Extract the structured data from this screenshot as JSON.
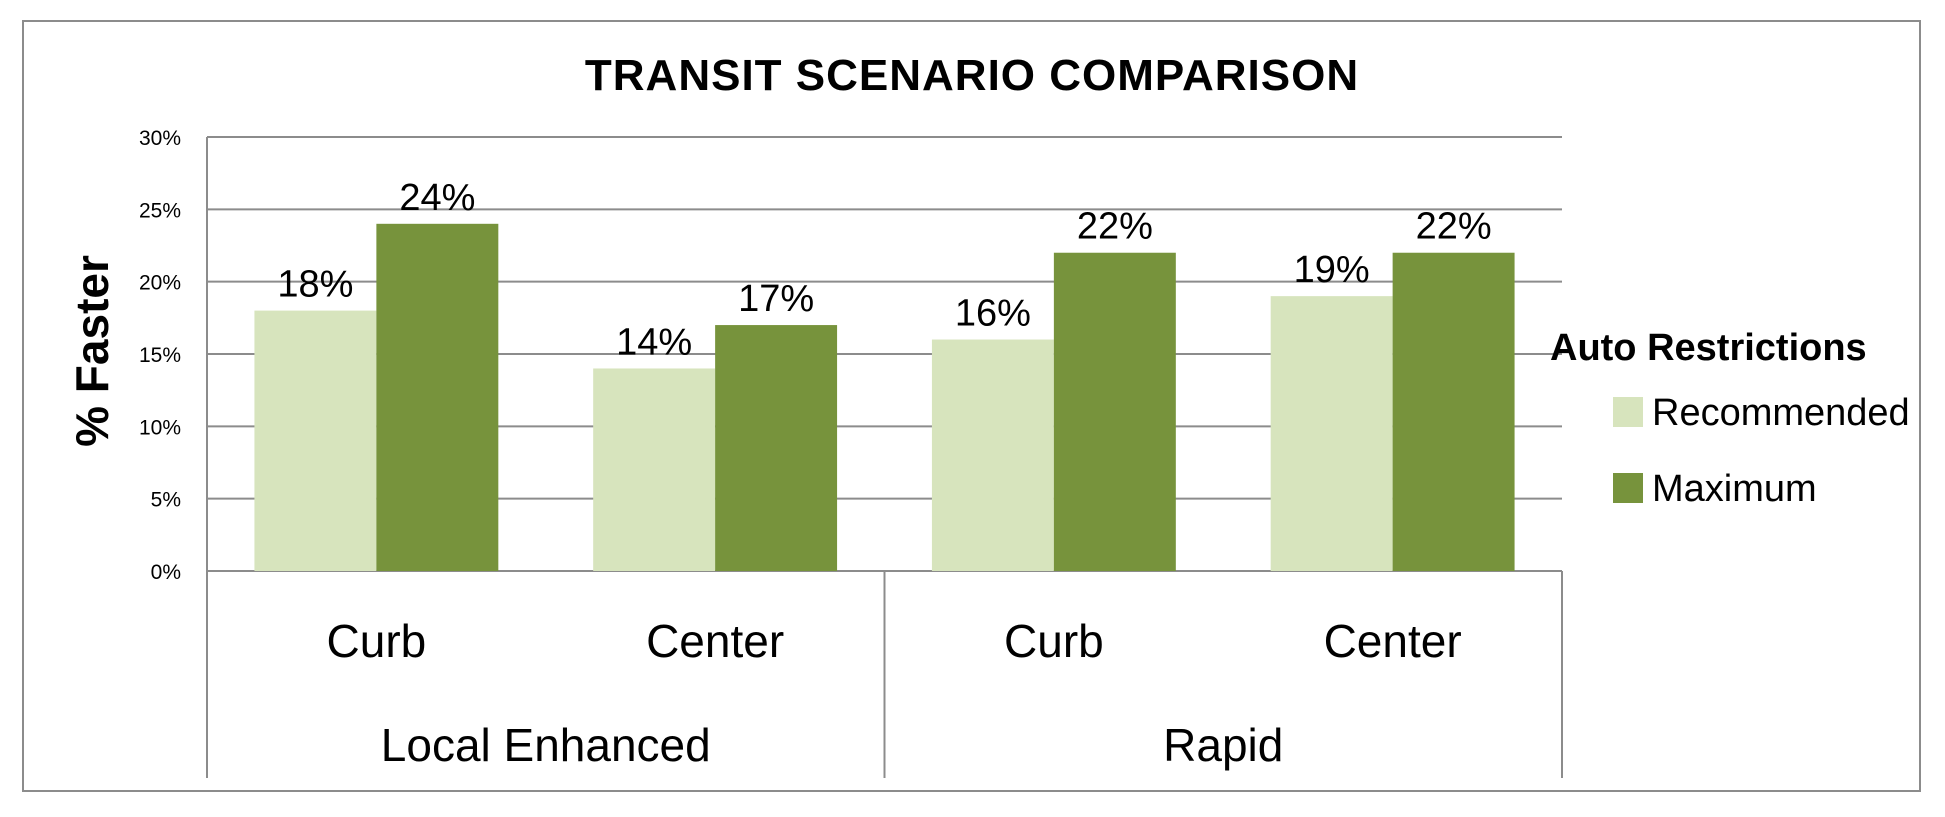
{
  "chart_data": {
    "type": "bar",
    "title": "TRANSIT SCENARIO COMPARISON",
    "ylabel": "% Faster",
    "xlabel": "",
    "ylim": [
      0,
      30
    ],
    "yticks": [
      "0%",
      "5%",
      "10%",
      "15%",
      "20%",
      "25%",
      "30%"
    ],
    "grid": true,
    "legend_position": "right",
    "legend_title": "Auto Restrictions",
    "categories": [
      "Curb",
      "Center",
      "Curb",
      "Center"
    ],
    "groups": [
      {
        "label": "Local Enhanced",
        "categories": [
          "Curb",
          "Center"
        ]
      },
      {
        "label": "Rapid",
        "categories": [
          "Curb",
          "Center"
        ]
      }
    ],
    "series": [
      {
        "name": "Recommended",
        "color": "#d7e4bd",
        "values": [
          18,
          14,
          16,
          19
        ],
        "labels": [
          "18%",
          "14%",
          "16%",
          "19%"
        ]
      },
      {
        "name": "Maximum",
        "color": "#77933c",
        "values": [
          24,
          17,
          22,
          22
        ],
        "labels": [
          "24%",
          "17%",
          "22%",
          "22%"
        ]
      }
    ]
  }
}
